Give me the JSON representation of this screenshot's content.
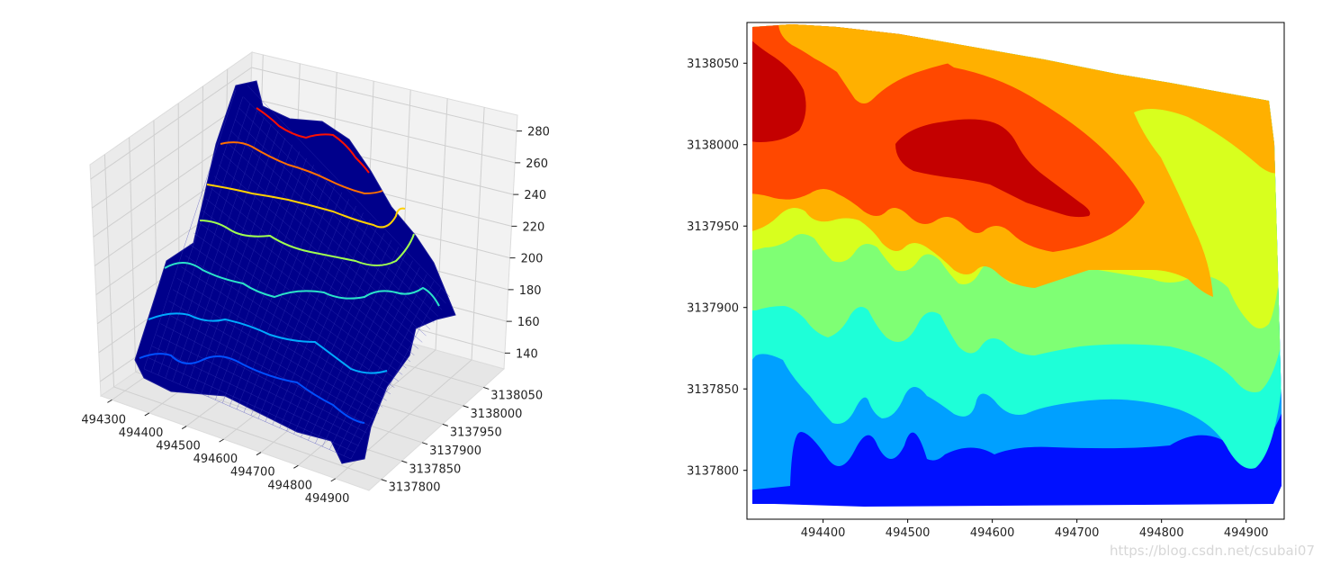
{
  "chart_data": [
    {
      "type": "surface3d",
      "title": "",
      "x_ticks": [
        "494300",
        "494400",
        "494500",
        "494600",
        "494700",
        "494800",
        "494900"
      ],
      "y_ticks": [
        "3137800",
        "3137850",
        "3137900",
        "3137950",
        "3138000",
        "3138050"
      ],
      "z_ticks": [
        "140",
        "160",
        "180",
        "200",
        "220",
        "240",
        "260",
        "280"
      ],
      "xlim": [
        494300,
        494940
      ],
      "ylim": [
        3137770,
        3138070
      ],
      "zlim": [
        130,
        290
      ],
      "surface_color": "#00008b",
      "contour_levels": [
        160,
        180,
        200,
        220,
        240,
        260,
        280
      ],
      "contour_colors": [
        "#0050ff",
        "#00aaff",
        "#2be3c8",
        "#a0ff50",
        "#ffd000",
        "#ff7000",
        "#ff1000"
      ],
      "grid": true
    },
    {
      "type": "filled_contour",
      "x_ticks": [
        "494400",
        "494500",
        "494600",
        "494700",
        "494800",
        "494900"
      ],
      "y_ticks": [
        "3138050",
        "3138000",
        "3137950",
        "3137900",
        "3137850",
        "3137800"
      ],
      "xlim": [
        494310,
        494945
      ],
      "ylim": [
        3137770,
        3138075
      ],
      "band_levels": [
        130,
        145,
        160,
        175,
        190,
        205,
        220,
        235,
        250,
        265,
        280
      ],
      "band_colors": [
        "#0010ff",
        "#00a0ff",
        "#1effd8",
        "#7fff74",
        "#d8ff1e",
        "#ffb000",
        "#ff4800",
        "#c40000"
      ]
    }
  ],
  "watermark": "https://blog.csdn.net/csubai07"
}
